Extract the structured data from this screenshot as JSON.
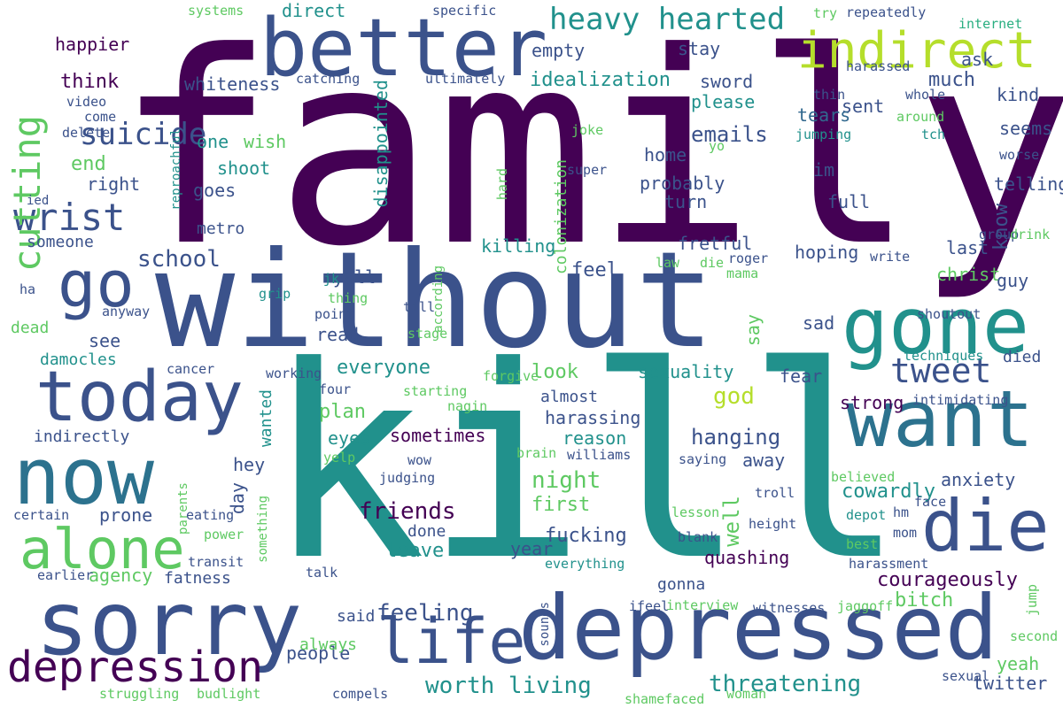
{
  "palette": {
    "dark_purple": "#440154",
    "purple_blue": "#3b528b",
    "slate_blue": "#31688e",
    "teal_blue": "#2c728e",
    "teal": "#21918c",
    "sea_green": "#28ae80",
    "green": "#5ec962",
    "yellow_green": "#addc30",
    "pale_green": "#b5de2b"
  },
  "words": [
    {
      "text": "family",
      "color": "#440154"
    },
    {
      "text": "without",
      "color": "#3b528b"
    },
    {
      "text": "kill",
      "color": "#21918c"
    },
    {
      "text": "better",
      "color": "#3b528b"
    },
    {
      "text": "depressed",
      "color": "#3b528b"
    },
    {
      "text": "sorry",
      "color": "#3b528b"
    },
    {
      "text": "want",
      "color": "#2c728e"
    },
    {
      "text": "gone",
      "color": "#21918c"
    },
    {
      "text": "now",
      "color": "#2c728e"
    },
    {
      "text": "today",
      "color": "#3b528b"
    },
    {
      "text": "die",
      "color": "#3b528b"
    },
    {
      "text": "life",
      "color": "#3b528b"
    },
    {
      "text": "depression",
      "color": "#440154"
    },
    {
      "text": "go",
      "color": "#3b528b"
    },
    {
      "text": "alone",
      "color": "#5ec962"
    },
    {
      "text": "indirect",
      "color": "#b5de2b"
    },
    {
      "text": "heavy hearted",
      "color": "#21918c"
    },
    {
      "text": "wrist",
      "color": "#3b528b"
    },
    {
      "text": "cutting",
      "color": "#5ec962"
    },
    {
      "text": "tweet",
      "color": "#3b528b"
    },
    {
      "text": "suicide",
      "color": "#3b528b"
    },
    {
      "text": "better",
      "color": "#3b528b"
    },
    {
      "text": "friends",
      "color": "#440154"
    },
    {
      "text": "threatening",
      "color": "#21918c"
    },
    {
      "text": "worth living",
      "color": "#21918c"
    },
    {
      "text": "feeling",
      "color": "#3b528b"
    },
    {
      "text": "school",
      "color": "#3b528b"
    },
    {
      "text": "night",
      "color": "#5ec962"
    },
    {
      "text": "god",
      "color": "#b5de2b"
    },
    {
      "text": "everyone",
      "color": "#21918c"
    },
    {
      "text": "courageously",
      "color": "#440154"
    },
    {
      "text": "hanging",
      "color": "#3b528b"
    },
    {
      "text": "emails",
      "color": "#3b528b"
    },
    {
      "text": "idealization",
      "color": "#21918c"
    },
    {
      "text": "much",
      "color": "#3b528b"
    },
    {
      "text": "fucking",
      "color": "#3b528b"
    },
    {
      "text": "know",
      "color": "#3b528b"
    },
    {
      "text": "cowardly",
      "color": "#21918c"
    },
    {
      "text": "quashing",
      "color": "#440154"
    },
    {
      "text": "well",
      "color": "#5ec962"
    },
    {
      "text": "first",
      "color": "#5ec962"
    },
    {
      "text": "leave",
      "color": "#21918c"
    },
    {
      "text": "feel",
      "color": "#3b528b"
    },
    {
      "text": "look",
      "color": "#5ec962"
    },
    {
      "text": "end",
      "color": "#5ec962"
    },
    {
      "text": "plan",
      "color": "#5ec962"
    },
    {
      "text": "think",
      "color": "#440154"
    },
    {
      "text": "agency",
      "color": "#5ec962"
    },
    {
      "text": "sexuality",
      "color": "#21918c"
    },
    {
      "text": "anxiety",
      "color": "#3b528b"
    },
    {
      "text": "fretful",
      "color": "#3b528b"
    },
    {
      "text": "probably",
      "color": "#3b528b"
    },
    {
      "text": "colonization",
      "color": "#5ec962"
    },
    {
      "text": "disappointed",
      "color": "#21918c"
    },
    {
      "text": "whiteness",
      "color": "#3b528b"
    },
    {
      "text": "direct",
      "color": "#21918c"
    },
    {
      "text": "heavy",
      "color": "#21918c"
    },
    {
      "text": "suicide",
      "color": "#3b528b"
    },
    {
      "text": "happier",
      "color": "#440154"
    },
    {
      "text": "empty",
      "color": "#3b528b"
    },
    {
      "text": "stay",
      "color": "#3b528b"
    },
    {
      "text": "sword",
      "color": "#3b528b"
    },
    {
      "text": "sent",
      "color": "#3b528b"
    },
    {
      "text": "kind",
      "color": "#3b528b"
    },
    {
      "text": "ask",
      "color": "#3b528b"
    },
    {
      "text": "please",
      "color": "#21918c"
    },
    {
      "text": "tears",
      "color": "#31688e"
    },
    {
      "text": "seems",
      "color": "#3b528b"
    },
    {
      "text": "home",
      "color": "#3b528b"
    },
    {
      "text": "im",
      "color": "#3b528b"
    },
    {
      "text": "telling",
      "color": "#3b528b"
    },
    {
      "text": "turn",
      "color": "#3b528b"
    },
    {
      "text": "full",
      "color": "#3b528b"
    },
    {
      "text": "goes",
      "color": "#3b528b"
    },
    {
      "text": "one",
      "color": "#21918c"
    },
    {
      "text": "wish",
      "color": "#5ec962"
    },
    {
      "text": "shoot",
      "color": "#21918c"
    },
    {
      "text": "right",
      "color": "#3b528b"
    },
    {
      "text": "metro",
      "color": "#3b528b"
    },
    {
      "text": "someone",
      "color": "#3b528b"
    },
    {
      "text": "hoping",
      "color": "#3b528b"
    },
    {
      "text": "killing",
      "color": "#21918c"
    },
    {
      "text": "last",
      "color": "#3b528b"
    },
    {
      "text": "christ",
      "color": "#5ec962"
    },
    {
      "text": "guy",
      "color": "#3b528b"
    },
    {
      "text": "yall",
      "color": "#3b528b"
    },
    {
      "text": "see",
      "color": "#3b528b"
    },
    {
      "text": "read",
      "color": "#3b528b"
    },
    {
      "text": "sad",
      "color": "#3b528b"
    },
    {
      "text": "damocles",
      "color": "#21918c"
    },
    {
      "text": "dead",
      "color": "#5ec962"
    },
    {
      "text": "died",
      "color": "#3b528b"
    },
    {
      "text": "fear",
      "color": "#3b528b"
    },
    {
      "text": "almost",
      "color": "#3b528b"
    },
    {
      "text": "strong",
      "color": "#440154"
    },
    {
      "text": "harassing",
      "color": "#3b528b"
    },
    {
      "text": "reason",
      "color": "#21918c"
    },
    {
      "text": "sometimes",
      "color": "#440154"
    },
    {
      "text": "eyes",
      "color": "#21918c"
    },
    {
      "text": "indirectly",
      "color": "#3b528b"
    },
    {
      "text": "wanted",
      "color": "#21918c"
    },
    {
      "text": "away",
      "color": "#3b528b"
    },
    {
      "text": "hey",
      "color": "#3b528b"
    },
    {
      "text": "day",
      "color": "#3b528b"
    },
    {
      "text": "prone",
      "color": "#3b528b"
    },
    {
      "text": "done",
      "color": "#3b528b"
    },
    {
      "text": "year",
      "color": "#3b528b"
    },
    {
      "text": "gonna",
      "color": "#3b528b"
    },
    {
      "text": "people",
      "color": "#3b528b"
    },
    {
      "text": "said",
      "color": "#3b528b"
    },
    {
      "text": "always",
      "color": "#5ec962"
    },
    {
      "text": "fatness",
      "color": "#3b528b"
    },
    {
      "text": "bitch",
      "color": "#5ec962"
    },
    {
      "text": "yeah",
      "color": "#5ec962"
    },
    {
      "text": "twitter",
      "color": "#3b528b"
    },
    {
      "text": "say",
      "color": "#5ec962"
    },
    {
      "text": "systems",
      "color": "#5ec962"
    },
    {
      "text": "specific",
      "color": "#3b528b"
    },
    {
      "text": "try",
      "color": "#5ec962"
    },
    {
      "text": "repeatedly",
      "color": "#3b528b"
    },
    {
      "text": "internet",
      "color": "#28ae80"
    },
    {
      "text": "harassed",
      "color": "#3b528b"
    },
    {
      "text": "catching",
      "color": "#3b528b"
    },
    {
      "text": "ultimately",
      "color": "#3b528b"
    },
    {
      "text": "video",
      "color": "#3b528b"
    },
    {
      "text": "come",
      "color": "#3b528b"
    },
    {
      "text": "delete",
      "color": "#3b528b"
    },
    {
      "text": "reproachful",
      "color": "#21918c"
    },
    {
      "text": "ied",
      "color": "#3b528b"
    },
    {
      "text": "joke",
      "color": "#5ec962"
    },
    {
      "text": "yo",
      "color": "#5ec962"
    },
    {
      "text": "super",
      "color": "#3b528b"
    },
    {
      "text": "hard",
      "color": "#5ec962"
    },
    {
      "text": "thin",
      "color": "#3b528b"
    },
    {
      "text": "whole",
      "color": "#3b528b"
    },
    {
      "text": "around",
      "color": "#5ec962"
    },
    {
      "text": "tch",
      "color": "#21918c"
    },
    {
      "text": "jumping",
      "color": "#21918c"
    },
    {
      "text": "worse",
      "color": "#3b528b"
    },
    {
      "text": "group",
      "color": "#3b528b"
    },
    {
      "text": "drink",
      "color": "#5ec962"
    },
    {
      "text": "write",
      "color": "#3b528b"
    },
    {
      "text": "according",
      "color": "#5ec962"
    },
    {
      "text": "law",
      "color": "#5ec962"
    },
    {
      "text": "die",
      "color": "#5ec962"
    },
    {
      "text": "roger",
      "color": "#3b528b"
    },
    {
      "text": "mama",
      "color": "#5ec962"
    },
    {
      "text": "jk",
      "color": "#21918c"
    },
    {
      "text": "thing",
      "color": "#5ec962"
    },
    {
      "text": "grip",
      "color": "#21918c"
    },
    {
      "text": "point",
      "color": "#3b528b"
    },
    {
      "text": "till",
      "color": "#3b528b"
    },
    {
      "text": "shoutout",
      "color": "#3b528b"
    },
    {
      "text": "ha",
      "color": "#3b528b"
    },
    {
      "text": "anyway",
      "color": "#3b528b"
    },
    {
      "text": "stage",
      "color": "#5ec962"
    },
    {
      "text": "cancer",
      "color": "#3b528b"
    },
    {
      "text": "working",
      "color": "#3b528b"
    },
    {
      "text": "four",
      "color": "#3b528b"
    },
    {
      "text": "forgive",
      "color": "#5ec962"
    },
    {
      "text": "starting",
      "color": "#5ec962"
    },
    {
      "text": "nagin",
      "color": "#5ec962"
    },
    {
      "text": "techniques",
      "color": "#21918c"
    },
    {
      "text": "intimidating",
      "color": "#3b528b"
    },
    {
      "text": "yelp",
      "color": "#5ec962"
    },
    {
      "text": "wow",
      "color": "#3b528b"
    },
    {
      "text": "brain",
      "color": "#5ec962"
    },
    {
      "text": "williams",
      "color": "#3b528b"
    },
    {
      "text": "saying",
      "color": "#3b528b"
    },
    {
      "text": "believed",
      "color": "#5ec962"
    },
    {
      "text": "parents",
      "color": "#5ec962"
    },
    {
      "text": "judging",
      "color": "#3b528b"
    },
    {
      "text": "troll",
      "color": "#3b528b"
    },
    {
      "text": "certain",
      "color": "#3b528b"
    },
    {
      "text": "eating",
      "color": "#3b528b"
    },
    {
      "text": "something",
      "color": "#5ec962"
    },
    {
      "text": "lesson",
      "color": "#5ec962"
    },
    {
      "text": "depot",
      "color": "#21918c"
    },
    {
      "text": "hm",
      "color": "#3b528b"
    },
    {
      "text": "face",
      "color": "#3b528b"
    },
    {
      "text": "power",
      "color": "#5ec962"
    },
    {
      "text": "height",
      "color": "#3b528b"
    },
    {
      "text": "best",
      "color": "#5ec962"
    },
    {
      "text": "mom",
      "color": "#3b528b"
    },
    {
      "text": "blank",
      "color": "#3b528b"
    },
    {
      "text": "transit",
      "color": "#3b528b"
    },
    {
      "text": "harassment",
      "color": "#3b528b"
    },
    {
      "text": "everything",
      "color": "#21918c"
    },
    {
      "text": "earlier",
      "color": "#3b528b"
    },
    {
      "text": "talk",
      "color": "#3b528b"
    },
    {
      "text": "sounds",
      "color": "#3b528b"
    },
    {
      "text": "ifeel",
      "color": "#3b528b"
    },
    {
      "text": "interview",
      "color": "#5ec962"
    },
    {
      "text": "witnesses",
      "color": "#3b528b"
    },
    {
      "text": "jaggoff",
      "color": "#5ec962"
    },
    {
      "text": "jump",
      "color": "#5ec962"
    },
    {
      "text": "second",
      "color": "#5ec962"
    },
    {
      "text": "struggling",
      "color": "#5ec962"
    },
    {
      "text": "budlight",
      "color": "#5ec962"
    },
    {
      "text": "compels",
      "color": "#3b528b"
    },
    {
      "text": "woman",
      "color": "#5ec962"
    },
    {
      "text": "shamefaced",
      "color": "#5ec962"
    },
    {
      "text": "sexual",
      "color": "#3b528b"
    }
  ]
}
